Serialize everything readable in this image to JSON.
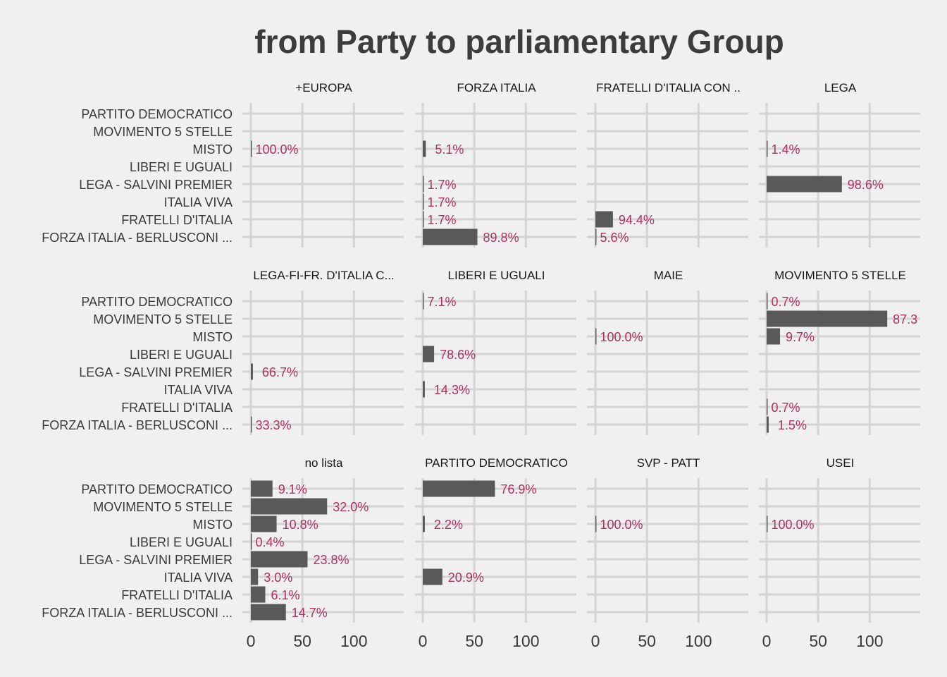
{
  "chart_data": {
    "type": "bar",
    "orientation": "horizontal",
    "facet_layout": "3 rows x 4 columns",
    "title": "from Party to parliamentary Group",
    "xlabel": "",
    "ylabel": "",
    "xlim": [
      0,
      150
    ],
    "x_ticks": [
      "0",
      "50",
      "100"
    ],
    "grid": true,
    "bar_color": "#595959",
    "label_color": "#b03060",
    "background": "#f0f0f0",
    "categories": [
      "PARTITO DEMOCRATICO",
      "MOVIMENTO 5 STELLE",
      "MISTO",
      "LIBERI E UGUALI",
      "LEGA - SALVINI PREMIER",
      "ITALIA VIVA",
      "FRATELLI D'ITALIA",
      "FORZA ITALIA - BERLUSCONI ..."
    ],
    "facets": [
      {
        "title": "+EUROPA",
        "bars": [
          {
            "category": "MISTO",
            "value": 1,
            "label": "100.0%"
          }
        ]
      },
      {
        "title": "FORZA ITALIA",
        "bars": [
          {
            "category": "MISTO",
            "value": 3,
            "label": "5.1%"
          },
          {
            "category": "LEGA - SALVINI PREMIER",
            "value": 1,
            "label": "1.7%"
          },
          {
            "category": "ITALIA VIVA",
            "value": 1,
            "label": "1.7%"
          },
          {
            "category": "FRATELLI D'ITALIA",
            "value": 1,
            "label": "1.7%"
          },
          {
            "category": "FORZA ITALIA - BERLUSCONI ...",
            "value": 53,
            "label": "89.8%"
          }
        ]
      },
      {
        "title": "FRATELLI D'ITALIA CON ..",
        "bars": [
          {
            "category": "FRATELLI D'ITALIA",
            "value": 17,
            "label": "94.4%"
          },
          {
            "category": "FORZA ITALIA - BERLUSCONI ...",
            "value": 1,
            "label": "5.6%"
          }
        ]
      },
      {
        "title": "LEGA",
        "bars": [
          {
            "category": "MISTO",
            "value": 1,
            "label": "1.4%"
          },
          {
            "category": "LEGA - SALVINI PREMIER",
            "value": 73,
            "label": "98.6%"
          }
        ]
      },
      {
        "title": "LEGA-FI-FR. D'ITALIA C...",
        "bars": [
          {
            "category": "LEGA - SALVINI PREMIER",
            "value": 2,
            "label": "66.7%"
          },
          {
            "category": "FORZA ITALIA - BERLUSCONI ...",
            "value": 1,
            "label": "33.3%"
          }
        ]
      },
      {
        "title": "LIBERI E UGUALI",
        "bars": [
          {
            "category": "PARTITO DEMOCRATICO",
            "value": 1,
            "label": "7.1%"
          },
          {
            "category": "LIBERI E UGUALI",
            "value": 11,
            "label": "78.6%"
          },
          {
            "category": "ITALIA VIVA",
            "value": 2,
            "label": "14.3%"
          }
        ]
      },
      {
        "title": "MAIE",
        "bars": [
          {
            "category": "MISTO",
            "value": 1,
            "label": "100.0%"
          }
        ]
      },
      {
        "title": "MOVIMENTO 5 STELLE",
        "bars": [
          {
            "category": "PARTITO DEMOCRATICO",
            "value": 1,
            "label": "0.7%"
          },
          {
            "category": "MOVIMENTO 5 STELLE",
            "value": 117,
            "label": "87.3"
          },
          {
            "category": "MISTO",
            "value": 13,
            "label": "9.7%"
          },
          {
            "category": "FRATELLI D'ITALIA",
            "value": 1,
            "label": "0.7%"
          },
          {
            "category": "FORZA ITALIA - BERLUSCONI ...",
            "value": 2,
            "label": "1.5%"
          }
        ]
      },
      {
        "title": "no lista",
        "bars": [
          {
            "category": "PARTITO DEMOCRATICO",
            "value": 21,
            "label": "9.1%"
          },
          {
            "category": "MOVIMENTO 5 STELLE",
            "value": 74,
            "label": "32.0%"
          },
          {
            "category": "MISTO",
            "value": 25,
            "label": "10.8%"
          },
          {
            "category": "LIBERI E UGUALI",
            "value": 1,
            "label": "0.4%"
          },
          {
            "category": "LEGA - SALVINI PREMIER",
            "value": 55,
            "label": "23.8%"
          },
          {
            "category": "ITALIA VIVA",
            "value": 7,
            "label": "3.0%"
          },
          {
            "category": "FRATELLI D'ITALIA",
            "value": 14,
            "label": "6.1%"
          },
          {
            "category": "FORZA ITALIA - BERLUSCONI ...",
            "value": 34,
            "label": "14.7%"
          }
        ]
      },
      {
        "title": "PARTITO DEMOCRATICO",
        "bars": [
          {
            "category": "PARTITO DEMOCRATICO",
            "value": 70,
            "label": "76.9%"
          },
          {
            "category": "MISTO",
            "value": 2,
            "label": "2.2%"
          },
          {
            "category": "ITALIA VIVA",
            "value": 19,
            "label": "20.9%"
          }
        ]
      },
      {
        "title": "SVP - PATT",
        "bars": [
          {
            "category": "MISTO",
            "value": 1,
            "label": "100.0%"
          }
        ]
      },
      {
        "title": "USEI",
        "bars": [
          {
            "category": "MISTO",
            "value": 1,
            "label": "100.0%"
          }
        ]
      }
    ]
  }
}
